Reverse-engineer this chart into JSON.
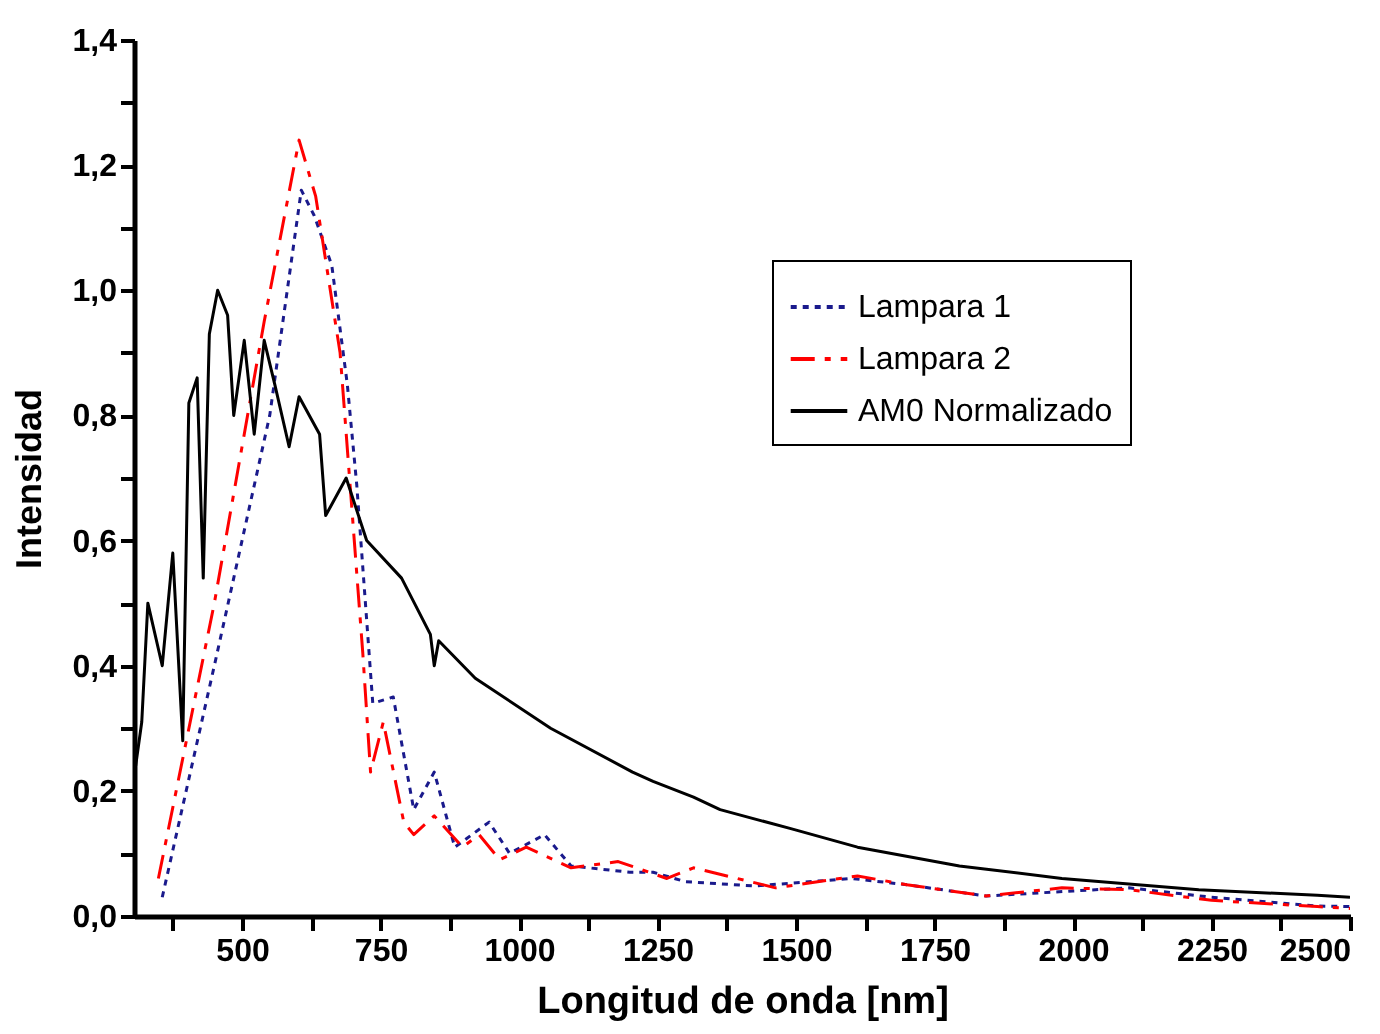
{
  "chart_data": {
    "type": "line",
    "xlabel": "Longitud de onda [nm]",
    "ylabel": "Intensidad",
    "xlim": [
      305,
      2500
    ],
    "ylim": [
      0,
      1.4
    ],
    "xticks": [
      {
        "value": 375,
        "label": null
      },
      500,
      {
        "value": 625,
        "label": null
      },
      750,
      {
        "value": 875,
        "label": null
      },
      1000,
      {
        "value": 1125,
        "label": null
      },
      1250,
      {
        "value": 1375,
        "label": null
      },
      1500,
      {
        "value": 1625,
        "label": null
      },
      1750,
      {
        "value": 1875,
        "label": null
      },
      2000,
      {
        "value": 2125,
        "label": null
      },
      2250,
      {
        "value": 2375,
        "label": null
      },
      2500
    ],
    "yticks": [
      {
        "value": 0,
        "label": "0,0"
      },
      {
        "value": 0.1,
        "label": null
      },
      {
        "value": 0.2,
        "label": "0,2"
      },
      {
        "value": 0.3,
        "label": null
      },
      {
        "value": 0.4,
        "label": "0,4"
      },
      {
        "value": 0.5,
        "label": null
      },
      {
        "value": 0.6,
        "label": "0,6"
      },
      {
        "value": 0.7,
        "label": null
      },
      {
        "value": 0.8,
        "label": "0,8"
      },
      {
        "value": 0.9,
        "label": null
      },
      {
        "value": 1.0,
        "label": "1,0"
      },
      {
        "value": 1.1,
        "label": null
      },
      {
        "value": 1.2,
        "label": "1,2"
      },
      {
        "value": 1.3,
        "label": null
      },
      {
        "value": 1.4,
        "label": "1,4"
      }
    ],
    "grid": false,
    "legend": "top right",
    "marker": "none",
    "series": [
      {
        "name": "Lampara 1",
        "color": "#1a1a8c",
        "line_style": "dotted",
        "x": [
          356,
          450,
          550,
          607,
          630,
          662,
          690,
          707,
          736,
          773,
          810,
          847,
          884,
          946,
          983,
          1046,
          1094,
          1200,
          1242,
          1300,
          1426,
          1600,
          1700,
          1843,
          2000,
          2101,
          2250,
          2441,
          2500
        ],
        "values": [
          0.03,
          0.4,
          0.8,
          1.16,
          1.12,
          1.04,
          0.85,
          0.69,
          0.34,
          0.35,
          0.17,
          0.23,
          0.11,
          0.15,
          0.1,
          0.13,
          0.08,
          0.07,
          0.07,
          0.055,
          0.048,
          0.06,
          0.05,
          0.032,
          0.04,
          0.045,
          0.03,
          0.016,
          0.015
        ]
      },
      {
        "name": "Lampara 2",
        "color": "#ff0000",
        "line_style": "dashed",
        "x": [
          349,
          450,
          540,
          603,
          633,
          677,
          718,
          732,
          755,
          792,
          810,
          847,
          898,
          928,
          965,
          1013,
          1094,
          1179,
          1267,
          1315,
          1463,
          1611,
          1700,
          1843,
          1980,
          2101,
          2250,
          2441,
          2500
        ],
        "values": [
          0.06,
          0.5,
          0.95,
          1.24,
          1.15,
          0.9,
          0.42,
          0.23,
          0.31,
          0.15,
          0.13,
          0.16,
          0.11,
          0.13,
          0.09,
          0.11,
          0.077,
          0.087,
          0.06,
          0.077,
          0.045,
          0.064,
          0.05,
          0.032,
          0.045,
          0.042,
          0.025,
          0.015,
          0.012
        ]
      },
      {
        "name": "AM0 Normalizado",
        "color": "#000000",
        "line_style": "solid",
        "x": [
          308,
          319,
          330,
          356,
          375,
          393,
          404,
          419,
          430,
          441,
          456,
          474,
          485,
          504,
          522,
          540,
          559,
          585,
          603,
          640,
          651,
          688,
          725,
          788,
          840,
          847,
          855,
          921,
          1057,
          1205,
          1242,
          1315,
          1363,
          1489,
          1611,
          1795,
          1980,
          2227,
          2441,
          2500
        ],
        "values": [
          0.24,
          0.31,
          0.5,
          0.4,
          0.58,
          0.28,
          0.82,
          0.86,
          0.54,
          0.93,
          1.0,
          0.96,
          0.8,
          0.92,
          0.77,
          0.92,
          0.85,
          0.75,
          0.83,
          0.77,
          0.64,
          0.7,
          0.6,
          0.54,
          0.45,
          0.4,
          0.44,
          0.38,
          0.3,
          0.23,
          0.215,
          0.19,
          0.17,
          0.14,
          0.11,
          0.08,
          0.06,
          0.042,
          0.033,
          0.03
        ]
      }
    ]
  }
}
